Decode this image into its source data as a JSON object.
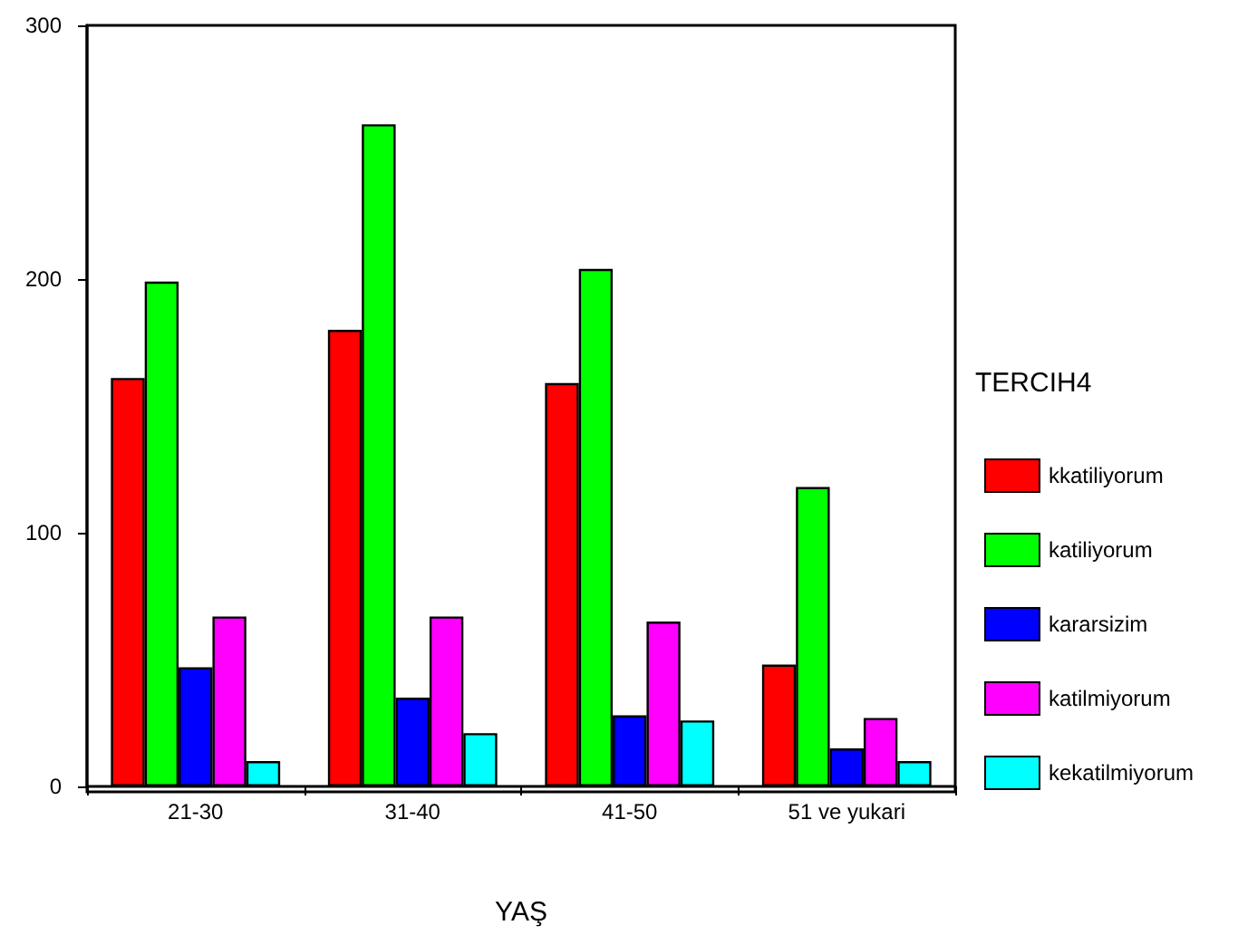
{
  "chart_data": {
    "type": "bar",
    "xlabel": "YAŞ",
    "legend_title": "TERCIH4",
    "categories": [
      "21-30",
      "31-40",
      "41-50",
      "51 ve yukari"
    ],
    "series": [
      {
        "name": "kkatiliyorum",
        "color": "#ff0000",
        "values": [
          161,
          180,
          159,
          48
        ]
      },
      {
        "name": "katiliyorum",
        "color": "#00ff00",
        "values": [
          199,
          261,
          204,
          118
        ]
      },
      {
        "name": "kararsizim",
        "color": "#0000ff",
        "values": [
          47,
          35,
          28,
          15
        ]
      },
      {
        "name": "katilmiyorum",
        "color": "#ff00ff",
        "values": [
          67,
          67,
          65,
          27
        ]
      },
      {
        "name": "kekatilmiyorum",
        "color": "#00ffff",
        "values": [
          10,
          21,
          26,
          10
        ]
      }
    ],
    "ylim": [
      0,
      300
    ],
    "yticks": [
      0,
      100,
      200,
      300
    ],
    "grid": false,
    "legend": "right"
  }
}
